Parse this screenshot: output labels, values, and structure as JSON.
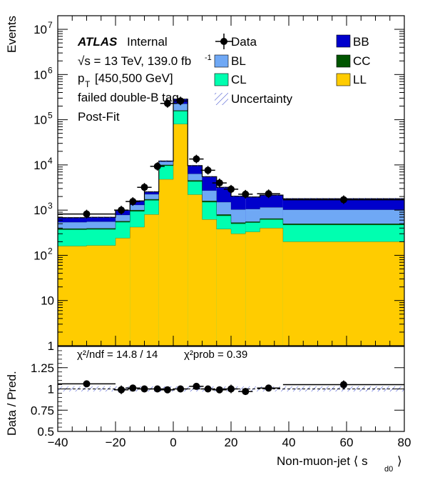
{
  "chart_data": [
    {
      "type": "bar",
      "stacked": true,
      "title": "",
      "ylabel": "Events",
      "yscale": "log",
      "ylim": [
        1,
        20000000
      ],
      "xlim": [
        -40,
        80
      ],
      "bin_edges": [
        -40,
        -30,
        -20,
        -15,
        -10,
        -5,
        0,
        5,
        10,
        15,
        20,
        25,
        30,
        38,
        80
      ],
      "stack_order": [
        "LL",
        "CL",
        "CC",
        "BL",
        "BB"
      ],
      "series": [
        {
          "name": "LL",
          "color": "#ffcc00",
          "values": [
            160,
            165,
            240,
            420,
            800,
            4800,
            80000,
            2200,
            620,
            380,
            300,
            330,
            400,
            200
          ]
        },
        {
          "name": "CL",
          "color": "#00ffb0",
          "values": [
            210,
            210,
            300,
            520,
            850,
            4800,
            75000,
            2100,
            880,
            370,
            200,
            200,
            220,
            270
          ]
        },
        {
          "name": "CC",
          "color": "#005500",
          "values": [
            20,
            20,
            30,
            60,
            90,
            400,
            5000,
            250,
            100,
            50,
            30,
            25,
            30,
            30
          ]
        },
        {
          "name": "BL",
          "color": "#6fa8f5",
          "values": [
            150,
            160,
            210,
            300,
            500,
            1800,
            65000,
            1800,
            1100,
            700,
            500,
            500,
            500,
            520
          ]
        },
        {
          "name": "BB",
          "color": "#0000cc",
          "values": [
            140,
            140,
            210,
            300,
            300,
            400,
            60000,
            3300,
            2800,
            1700,
            1000,
            900,
            1000,
            770
          ]
        }
      ],
      "data_points": [
        {
          "x": -30,
          "y": 820,
          "xerr": 10
        },
        {
          "x": -18,
          "y": 1000,
          "xerr": 2.5
        },
        {
          "x": -14,
          "y": 1550,
          "xerr": 2.5
        },
        {
          "x": -10,
          "y": 3200,
          "xerr": 2.5
        },
        {
          "x": -5.5,
          "y": 9300,
          "xerr": 2.5
        },
        {
          "x": -2,
          "y": 230000,
          "xerr": 2.5
        },
        {
          "x": 2.5,
          "y": 260000,
          "xerr": 2.5
        },
        {
          "x": 8,
          "y": 13500,
          "xerr": 2.5
        },
        {
          "x": 12,
          "y": 7600,
          "xerr": 2.5
        },
        {
          "x": 16,
          "y": 4000,
          "xerr": 2.5
        },
        {
          "x": 20,
          "y": 2900,
          "xerr": 2.5
        },
        {
          "x": 25,
          "y": 2250,
          "xerr": 2.5
        },
        {
          "x": 33,
          "y": 2300,
          "xerr": 4
        },
        {
          "x": 59,
          "y": 1700,
          "xerr": 21
        }
      ],
      "legend": {
        "data": "Data",
        "uncertainty": "Uncertainty",
        "entries": [
          "BB",
          "BL",
          "CC",
          "CL",
          "LL"
        ]
      },
      "annotations": {
        "atlas": "ATLAS",
        "internal": "Internal",
        "energy": "√s = 13 TeV, 139.0 fb",
        "pt": "p",
        "pt_sub": "T",
        "pt_range": "[450,500 GeV]",
        "tag": "failed double-B tag",
        "fit": "Post-Fit"
      },
      "y_tick_labels": [
        "1",
        "10",
        "10",
        "10",
        "10",
        "10",
        "10",
        "10"
      ],
      "y_tick_exponents": [
        "",
        "",
        "2",
        "3",
        "4",
        "5",
        "6",
        "7"
      ]
    },
    {
      "type": "scatter",
      "ylabel": "Data / Pred.",
      "xlabel": "Non-muon-jet ⟨ s",
      "xlabel_sub": "d0",
      "xlabel_end": "⟩",
      "xlim": [
        -40,
        80
      ],
      "ylim": [
        0.5,
        1.5
      ],
      "reference_line": 1,
      "chi2_text": "χ²/ndf = 14.8 / 14",
      "chi2prob_text": "χ²prob = 0.39",
      "y_tick_labels": [
        "0.5",
        "0.75",
        "1",
        "1.25"
      ],
      "x_tick_labels": [
        "−40",
        "−20",
        "0",
        "20",
        "40",
        "60",
        "80"
      ],
      "points": [
        {
          "x": -30,
          "y": 1.06,
          "xerr": 10,
          "yerr": 0.02
        },
        {
          "x": -18,
          "y": 0.99,
          "xerr": 2.5,
          "yerr": 0.05
        },
        {
          "x": -14,
          "y": 1.01,
          "xerr": 2.5,
          "yerr": 0.04
        },
        {
          "x": -10,
          "y": 1.0,
          "xerr": 2.5,
          "yerr": 0.03
        },
        {
          "x": -5.5,
          "y": 1.0,
          "xerr": 2.5,
          "yerr": 0.02
        },
        {
          "x": -2,
          "y": 0.99,
          "xerr": 2.5,
          "yerr": 0.01
        },
        {
          "x": 2.5,
          "y": 1.0,
          "xerr": 2.5,
          "yerr": 0.01
        },
        {
          "x": 8,
          "y": 1.03,
          "xerr": 2.5,
          "yerr": 0.02
        },
        {
          "x": 12,
          "y": 1.0,
          "xerr": 2.5,
          "yerr": 0.03
        },
        {
          "x": 16,
          "y": 0.99,
          "xerr": 2.5,
          "yerr": 0.04
        },
        {
          "x": 20,
          "y": 1.0,
          "xerr": 2.5,
          "yerr": 0.05
        },
        {
          "x": 25,
          "y": 0.97,
          "xerr": 2.5,
          "yerr": 0.04
        },
        {
          "x": 33,
          "y": 1.01,
          "xerr": 4,
          "yerr": 0.04
        },
        {
          "x": 59,
          "y": 1.05,
          "xerr": 21,
          "yerr": 0.05
        }
      ]
    }
  ]
}
